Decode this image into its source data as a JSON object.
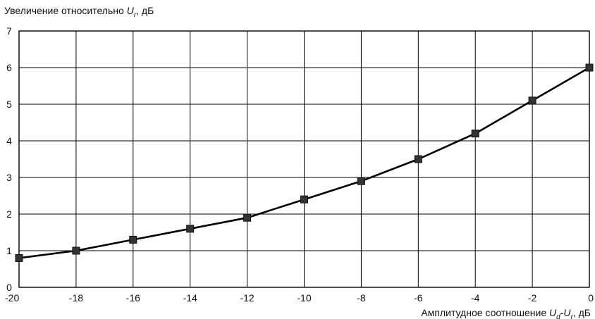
{
  "chart_data": {
    "type": "line",
    "y_title": {
      "prefix": "Увеличение относительно ",
      "symbol": "U",
      "subscript": "r",
      "suffix": ", дБ"
    },
    "x_title": {
      "prefix": "Амплитудное соотношение ",
      "symbol1": "U",
      "subscript1": "d",
      "middle": "-",
      "symbol2": "U",
      "subscript2": "r",
      "suffix": ", дБ"
    },
    "xlim": [
      -20,
      0
    ],
    "ylim": [
      0,
      7
    ],
    "x_ticks": [
      -20,
      -18,
      -16,
      -14,
      -12,
      -10,
      -8,
      -6,
      -4,
      -2,
      0
    ],
    "y_ticks": [
      0,
      1,
      2,
      3,
      4,
      5,
      6,
      7
    ],
    "grid": true,
    "series": [
      {
        "x": [
          -20,
          -18,
          -16,
          -14,
          -12,
          -10,
          -8,
          -6,
          -4,
          -2,
          0
        ],
        "y": [
          0.8,
          1.0,
          1.3,
          1.6,
          1.9,
          2.4,
          2.9,
          3.5,
          4.2,
          5.1,
          6.0
        ]
      }
    ]
  }
}
